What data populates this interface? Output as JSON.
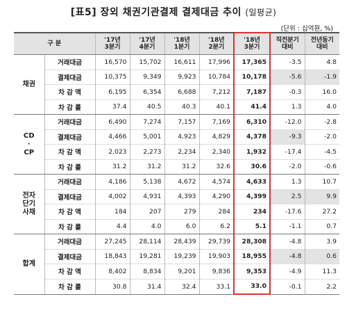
{
  "title": "[표5] 장외  채권기관결제  결제대금  추이",
  "title_sub": "(일평균)",
  "unit": "(단위 : 십억원, %)",
  "headers": [
    "구 분",
    "'17년\n3분기",
    "'17년\n4분기",
    "'18년\n1분기",
    "'18년\n2분기",
    "'18년\n3분기",
    "직전분기\n대비",
    "전년동기\n대비"
  ],
  "groups": [
    {
      "name": "채권",
      "rows": [
        {
          "item": "거래대금",
          "values": [
            "16,570",
            "15,702",
            "16,611",
            "17,996",
            "17,365",
            "-3.5",
            "4.8"
          ]
        },
        {
          "item": "결제대금",
          "values": [
            "10,375",
            "9,349",
            "9,923",
            "10,784",
            "10,178",
            "-5.6",
            "-1.9"
          ]
        },
        {
          "item": "차 감 액",
          "values": [
            "6,195",
            "6,354",
            "6,688",
            "7,212",
            "7,187",
            "-0.3",
            "16.0"
          ]
        },
        {
          "item": "차 감 률",
          "values": [
            "37.4",
            "40.5",
            "40.3",
            "40.1",
            "41.4",
            "1.3",
            "4.0"
          ]
        }
      ]
    },
    {
      "name": "CD\n·\nCP",
      "rows": [
        {
          "item": "거래대금",
          "values": [
            "6,490",
            "7,274",
            "7,157",
            "7,169",
            "6,310",
            "-12.0",
            "-2.8"
          ]
        },
        {
          "item": "결제대금",
          "values": [
            "4,466",
            "5,001",
            "4,923",
            "4,829",
            "4,378",
            "-9.3",
            "-2.0"
          ]
        },
        {
          "item": "차 감 액",
          "values": [
            "2,023",
            "2,273",
            "2,234",
            "2,340",
            "1,932",
            "-17.4",
            "-4.5"
          ]
        },
        {
          "item": "차 감 률",
          "values": [
            "31.2",
            "31.2",
            "31.2",
            "32.6",
            "30.6",
            "-2.0",
            "-0.6"
          ]
        }
      ]
    },
    {
      "name": "전자\n단기\n사채",
      "rows": [
        {
          "item": "거래대금",
          "values": [
            "4,186",
            "5,138",
            "4,672",
            "4,574",
            "4,633",
            "1.3",
            "10.7"
          ]
        },
        {
          "item": "결제대금",
          "values": [
            "4,002",
            "4,931",
            "4,393",
            "4,290",
            "4,399",
            "2.5",
            "9.9"
          ]
        },
        {
          "item": "차 감 액",
          "values": [
            "184",
            "207",
            "279",
            "284",
            "234",
            "-17.6",
            "27.2"
          ]
        },
        {
          "item": "차 감 률",
          "values": [
            "4.4",
            "4.0",
            "6.0",
            "6.2",
            "5.1",
            "-1.1",
            "0.7"
          ]
        }
      ]
    },
    {
      "name": "합계",
      "rows": [
        {
          "item": "거래대금",
          "values": [
            "27,245",
            "28,114",
            "28,439",
            "29,739",
            "28,308",
            "-4.8",
            "3.9"
          ]
        },
        {
          "item": "결제대금",
          "values": [
            "18,843",
            "19,281",
            "19,239",
            "19,903",
            "18,955",
            "-4.8",
            "0.6"
          ]
        },
        {
          "item": "차 감 액",
          "values": [
            "8,402",
            "8,834",
            "9,201",
            "9,836",
            "9,353",
            "-4.9",
            "11.3"
          ]
        },
        {
          "item": "차 감 률",
          "values": [
            "30.8",
            "31.4",
            "32.4",
            "33.1",
            "33.0",
            "-0.1",
            "2.2"
          ]
        }
      ]
    }
  ],
  "colors": {
    "highlight_border": "#e03030",
    "header_bg": "#e3e3e3",
    "shaded_cell_bg": "#e3e3e3"
  }
}
